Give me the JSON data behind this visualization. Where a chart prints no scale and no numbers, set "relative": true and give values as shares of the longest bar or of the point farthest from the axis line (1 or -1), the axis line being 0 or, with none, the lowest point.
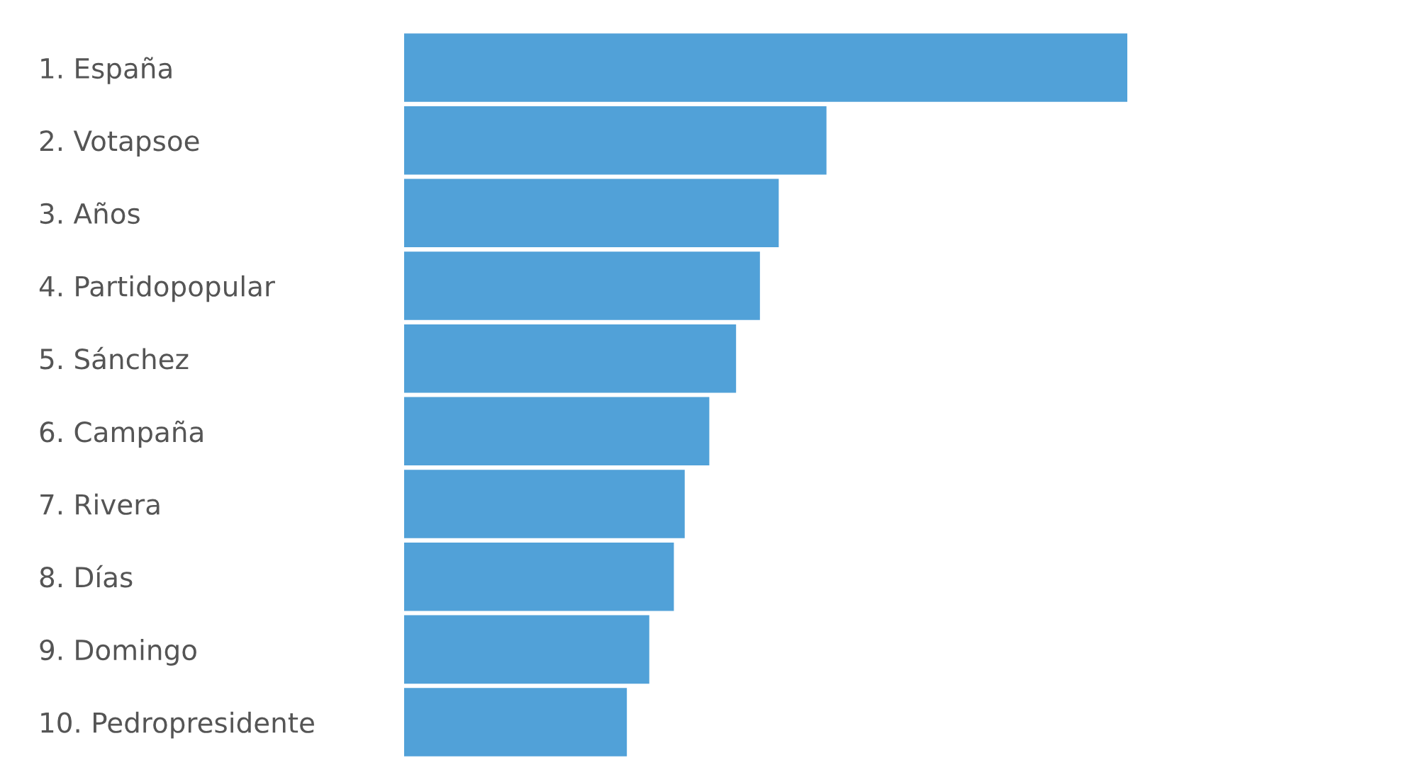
{
  "chart_data": {
    "type": "bar",
    "orientation": "horizontal",
    "relative": true,
    "categories": [
      "1. España",
      "2. Votapsoe",
      "3. Años",
      "4. Partidopopular",
      "5. Sánchez",
      "6. Campaña",
      "7. Rivera",
      "8. Días",
      "9. Domingo",
      "10. Pedropresidente"
    ],
    "values": [
      1,
      0.584,
      0.518,
      0.492,
      0.459,
      0.422,
      0.388,
      0.373,
      0.339,
      0.308
    ],
    "color": "#51a1d8",
    "grid": false,
    "legend": false
  }
}
